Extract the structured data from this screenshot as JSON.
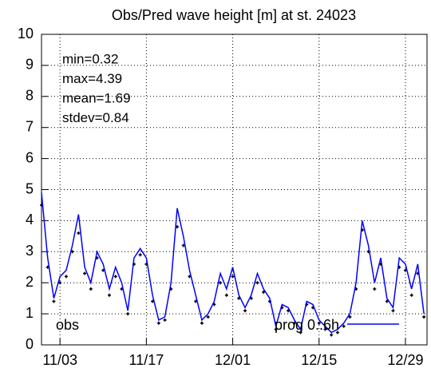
{
  "chart_data": {
    "type": "line",
    "title": "Obs/Pred wave height [m] at st. 24023",
    "annotations": [
      "min=0.32",
      "max=4.39",
      "mean=1.69",
      "stdev=0.84"
    ],
    "x": [
      -3,
      -2,
      -1,
      0,
      1,
      2,
      3,
      4,
      5,
      6,
      7,
      8,
      9,
      10,
      11,
      12,
      13,
      14,
      15,
      16,
      17,
      18,
      19,
      20,
      21,
      22,
      23,
      24,
      25,
      26,
      27,
      28,
      29,
      30,
      31,
      32,
      33,
      34,
      35,
      36,
      37,
      38,
      39,
      40,
      41,
      42,
      43,
      44,
      45,
      46,
      47,
      48,
      49,
      50,
      51,
      52,
      53,
      54,
      55,
      56,
      57,
      58,
      59
    ],
    "series": [
      {
        "name": "obs",
        "color": "#000000",
        "style": "points",
        "values": [
          4.5,
          2.5,
          1.4,
          2.0,
          2.2,
          3.0,
          3.6,
          2.3,
          1.8,
          2.8,
          2.4,
          1.6,
          2.2,
          1.8,
          1.0,
          2.6,
          2.9,
          2.6,
          1.4,
          0.7,
          0.8,
          1.8,
          3.8,
          3.2,
          2.2,
          1.4,
          0.7,
          0.9,
          1.3,
          2.0,
          1.6,
          2.2,
          1.5,
          1.1,
          1.5,
          2.0,
          1.7,
          1.4,
          0.5,
          1.2,
          1.1,
          0.7,
          0.4,
          1.3,
          1.2,
          0.7,
          0.5,
          0.32,
          0.4,
          0.6,
          0.9,
          1.8,
          3.7,
          3.0,
          1.8,
          2.6,
          1.4,
          1.1,
          2.5,
          2.4,
          1.6,
          2.3,
          0.9
        ]
      },
      {
        "name": "prog 0..6h",
        "color": "#0000ff",
        "style": "line",
        "values": [
          4.9,
          2.8,
          1.5,
          2.2,
          2.4,
          3.2,
          4.2,
          2.5,
          2.0,
          3.0,
          2.6,
          1.8,
          2.5,
          2.0,
          1.1,
          2.8,
          3.1,
          2.8,
          1.6,
          0.8,
          0.9,
          2.0,
          4.4,
          3.5,
          2.4,
          1.6,
          0.8,
          1.0,
          1.4,
          2.3,
          1.8,
          2.5,
          1.6,
          1.2,
          1.6,
          2.3,
          1.8,
          1.5,
          0.6,
          1.3,
          1.2,
          0.8,
          0.5,
          1.4,
          1.3,
          0.8,
          0.6,
          0.4,
          0.5,
          0.7,
          1.0,
          2.0,
          4.0,
          3.2,
          2.0,
          2.8,
          1.5,
          1.2,
          2.8,
          2.6,
          1.8,
          2.6,
          1.0
        ]
      }
    ],
    "xlim": [
      -3,
      59.5
    ],
    "xticks": [
      {
        "value": 0,
        "label": "11/03"
      },
      {
        "value": 14,
        "label": "11/17"
      },
      {
        "value": 28,
        "label": "12/01"
      },
      {
        "value": 42,
        "label": "12/15"
      },
      {
        "value": 56,
        "label": "12/29"
      }
    ],
    "ylim": [
      0,
      10
    ],
    "yticks": [
      0,
      1,
      2,
      3,
      4,
      5,
      6,
      7,
      8,
      9,
      10
    ],
    "grid": true
  }
}
